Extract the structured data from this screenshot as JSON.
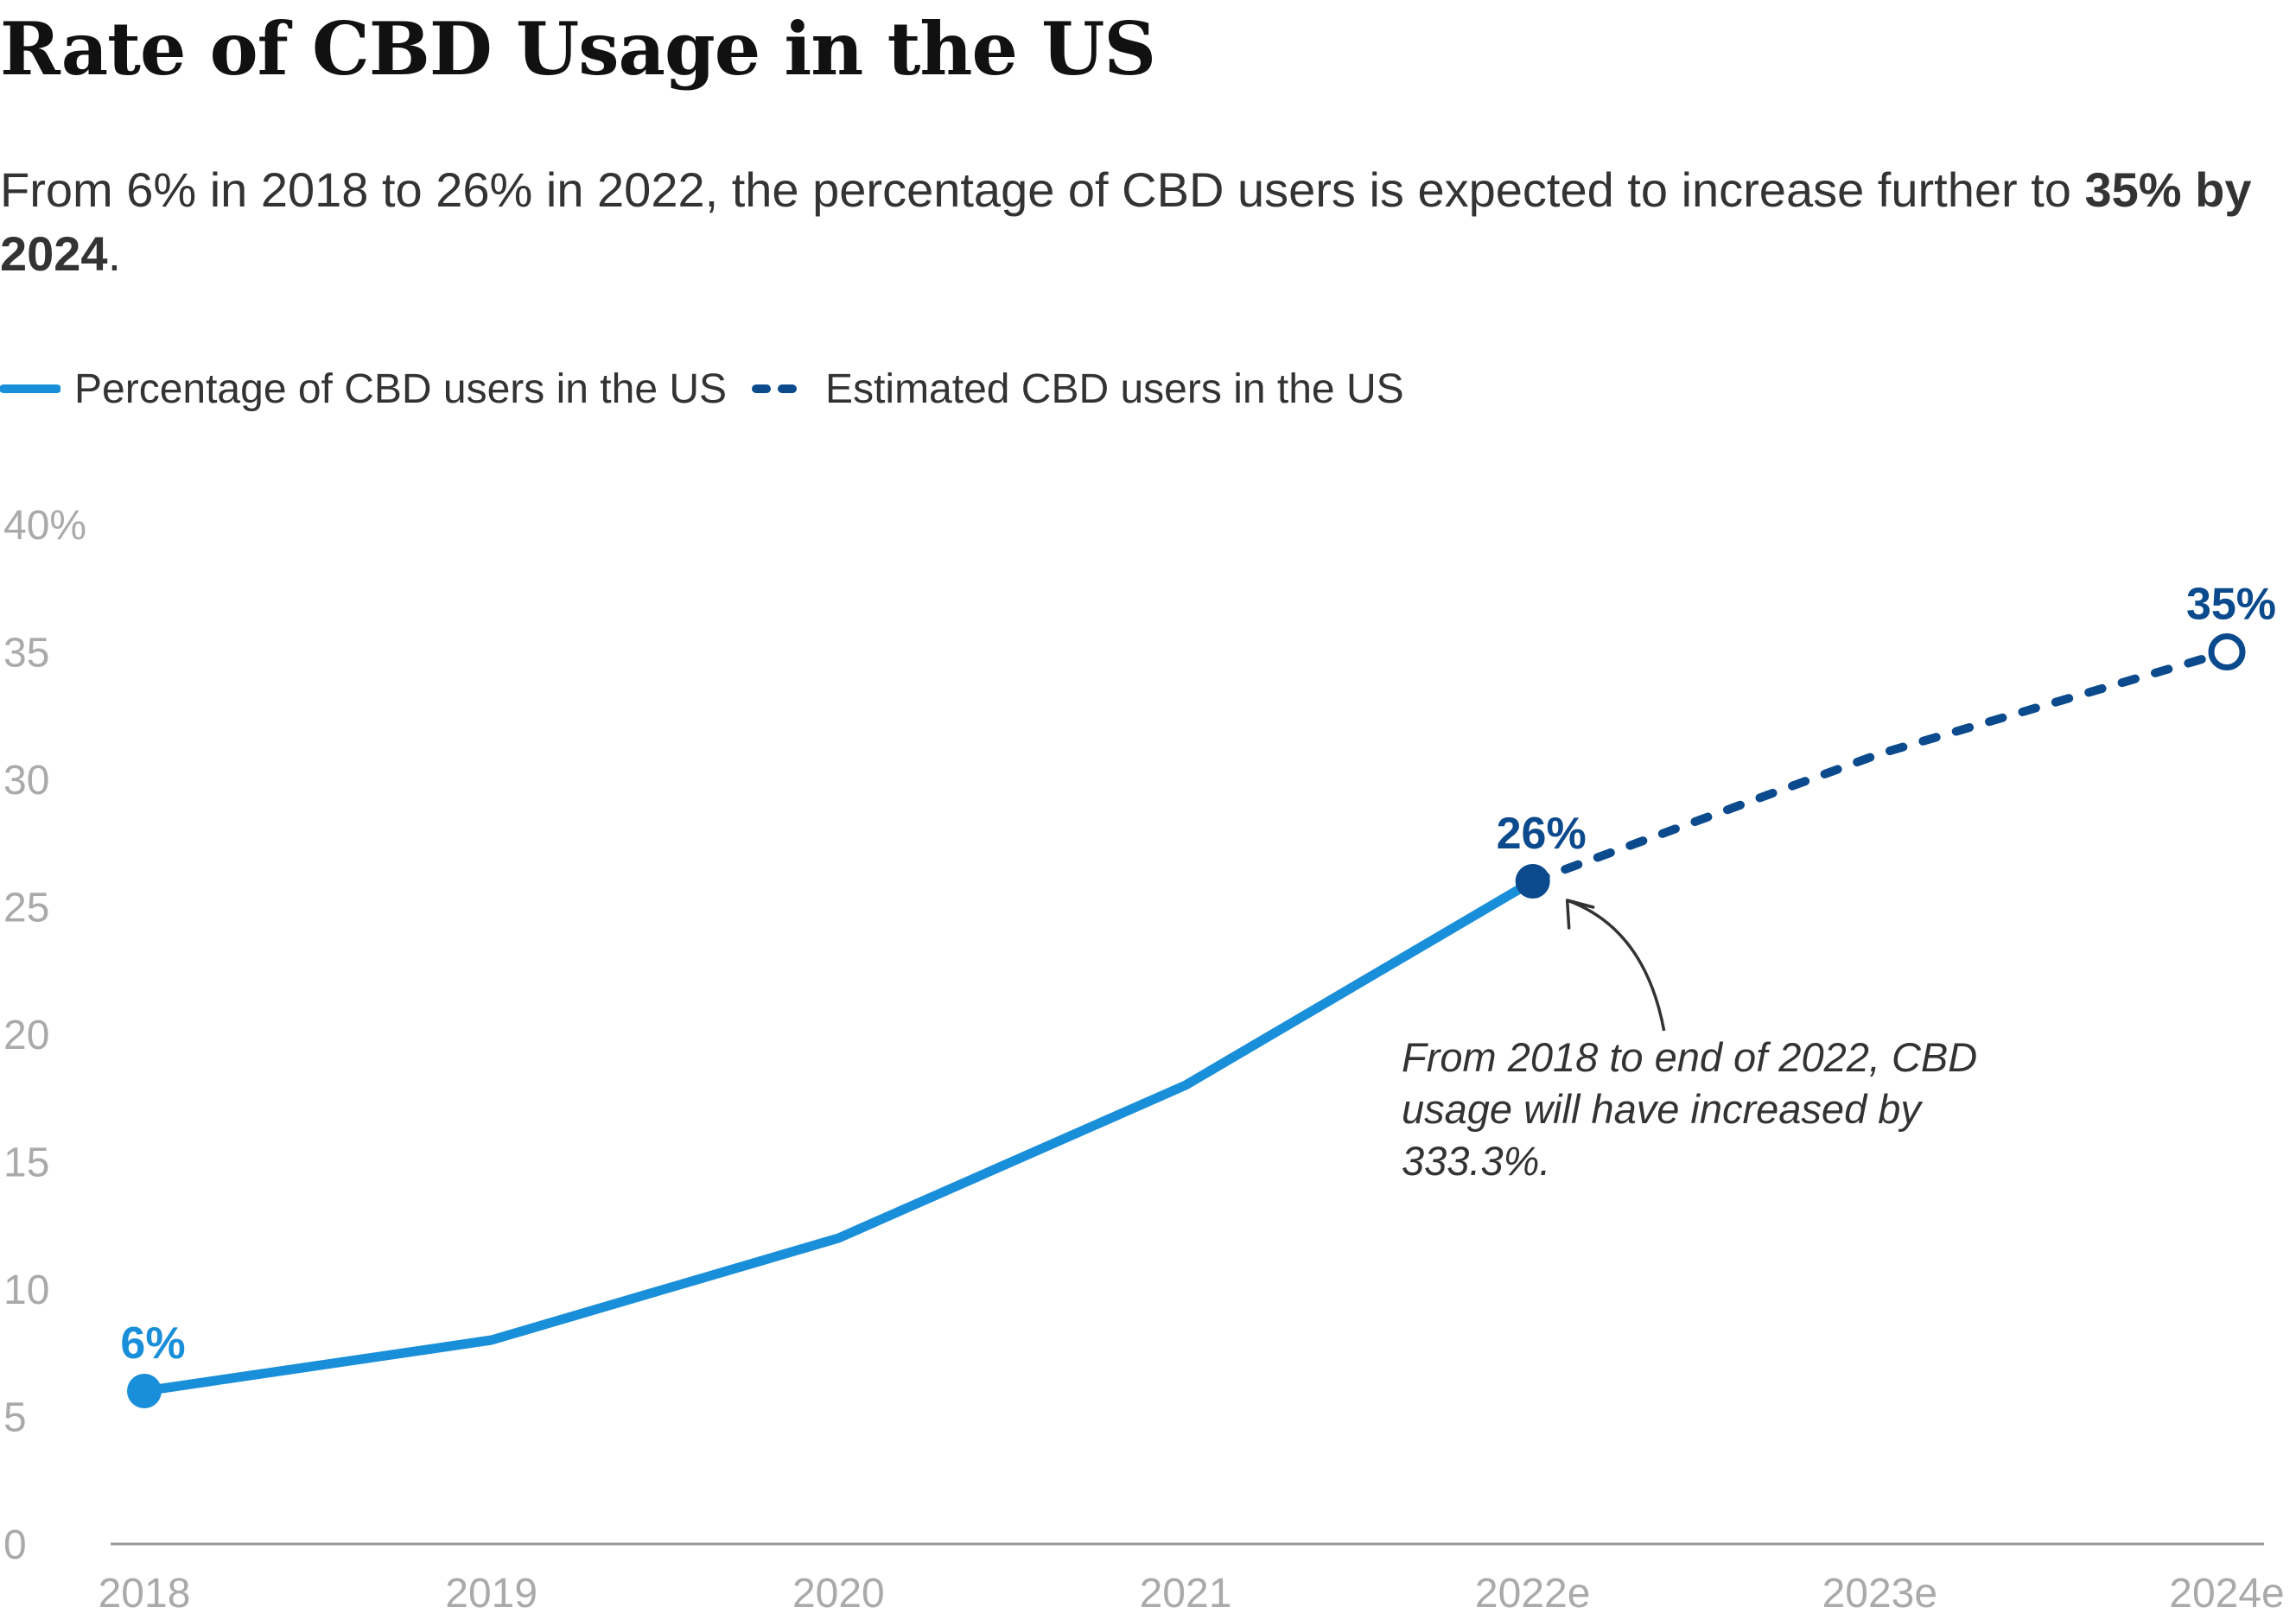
{
  "title": "Rate of CBD Usage in the US",
  "subtitle": {
    "text": "From 6% in 2018 to 26% in 2022, the percentage of CBD users is expected to increase further to ",
    "bold": "35% by 2024",
    "end": "."
  },
  "legend": {
    "items": [
      {
        "label": "Percentage of CBD users in the US",
        "style": "solid",
        "color": "#1a8fd9"
      },
      {
        "label": "Estimated CBD users in the US",
        "style": "dotted",
        "color": "#0b4a8c"
      }
    ]
  },
  "colors": {
    "actual": "#1a8fd9",
    "estimated": "#0b4a8c",
    "axis_text": "#aaaaaa",
    "axis_line": "#999999",
    "annotation": "#333333"
  },
  "chart_data": {
    "type": "line",
    "categories": [
      "2018",
      "2019",
      "2020",
      "2021",
      "2022e",
      "2023e",
      "2024e"
    ],
    "ylim": [
      0,
      40
    ],
    "yticks": [
      0,
      5,
      10,
      15,
      20,
      25,
      30,
      35,
      40
    ],
    "ytick_labels": [
      "0",
      "5",
      "10",
      "15",
      "20",
      "25",
      "30",
      "35",
      "40%"
    ],
    "grid": false,
    "legend_position": "top-left",
    "series": [
      {
        "name": "Percentage of CBD users in the US",
        "style": "solid",
        "values": [
          6,
          8,
          12,
          18,
          26,
          null,
          null
        ]
      },
      {
        "name": "Estimated CBD users in the US",
        "style": "dotted",
        "values": [
          null,
          null,
          null,
          null,
          26,
          31,
          35
        ]
      }
    ],
    "point_labels": [
      {
        "category": "2018",
        "value": 6,
        "label": "6%",
        "series": 0,
        "marker": "filled"
      },
      {
        "category": "2022e",
        "value": 26,
        "label": "26%",
        "series": 1,
        "marker": "filled"
      },
      {
        "category": "2024e",
        "value": 35,
        "label": "35%",
        "series": 1,
        "marker": "open"
      }
    ],
    "annotation": {
      "category": "2022e",
      "value": 26,
      "lines": [
        "From 2018 to end of 2022, CBD",
        "usage will have increased by",
        "333.3%."
      ]
    }
  }
}
